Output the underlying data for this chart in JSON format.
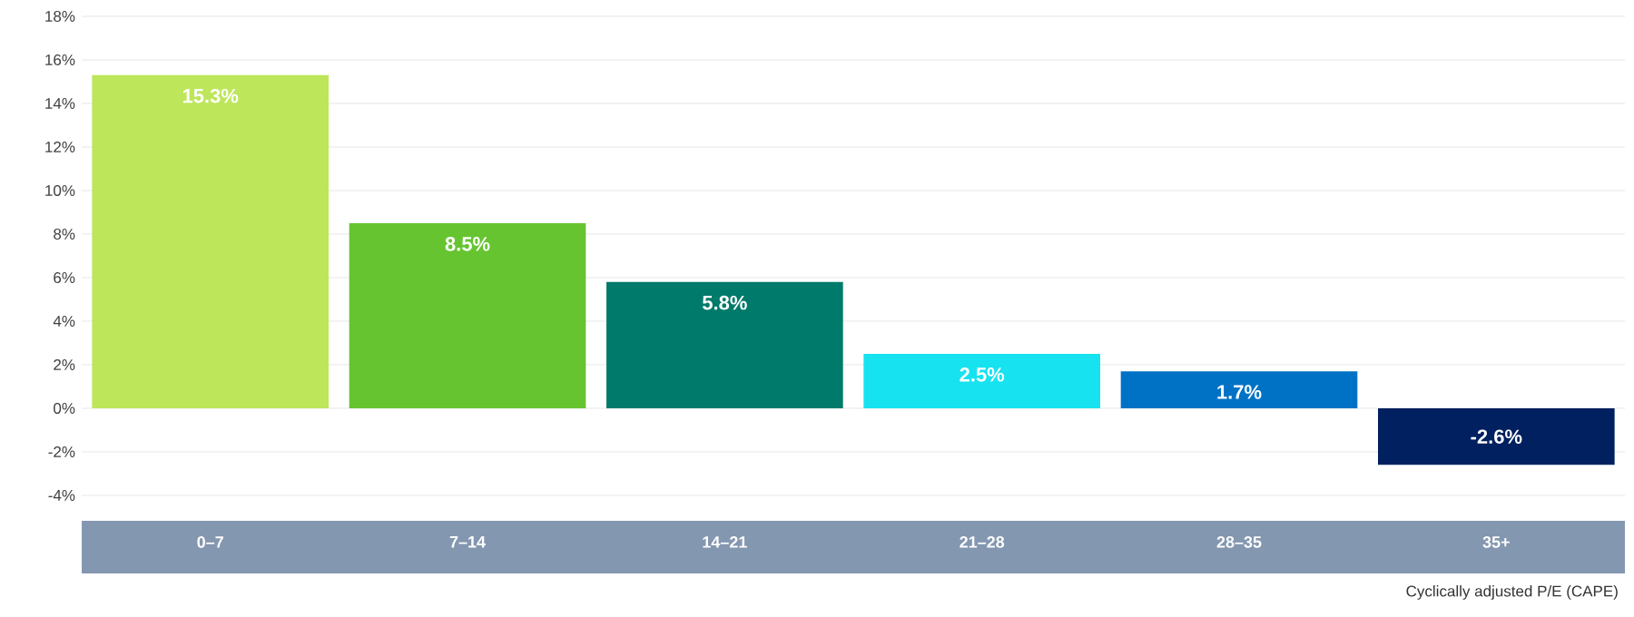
{
  "chart_data": {
    "type": "bar",
    "xlabel": "Cyclically adjusted P/E (CAPE)",
    "categories": [
      "0–7",
      "7–14",
      "14–21",
      "21–28",
      "28–35",
      "35+"
    ],
    "values": [
      15.3,
      8.5,
      5.8,
      2.5,
      1.7,
      -2.6
    ],
    "colors": [
      "#bde65a",
      "#66c430",
      "#007a6a",
      "#17e2f0",
      "#0072c6",
      "#00205f"
    ],
    "value_labels": [
      "15.3%",
      "8.5%",
      "5.8%",
      "2.5%",
      "1.7%",
      "-2.6%"
    ],
    "ylim": [
      -4,
      18
    ],
    "yticks": [
      {
        "value": -4,
        "label": "-4%"
      },
      {
        "value": -2,
        "label": "-2%"
      },
      {
        "value": 0,
        "label": "0%"
      },
      {
        "value": 2,
        "label": "2%"
      },
      {
        "value": 4,
        "label": "4%"
      },
      {
        "value": 6,
        "label": "6%"
      },
      {
        "value": 8,
        "label": "8%"
      },
      {
        "value": 10,
        "label": "10%"
      },
      {
        "value": 12,
        "label": "12%"
      },
      {
        "value": 14,
        "label": "14%"
      },
      {
        "value": 16,
        "label": "16%"
      },
      {
        "value": 18,
        "label": "18%"
      }
    ],
    "grid": "y"
  }
}
